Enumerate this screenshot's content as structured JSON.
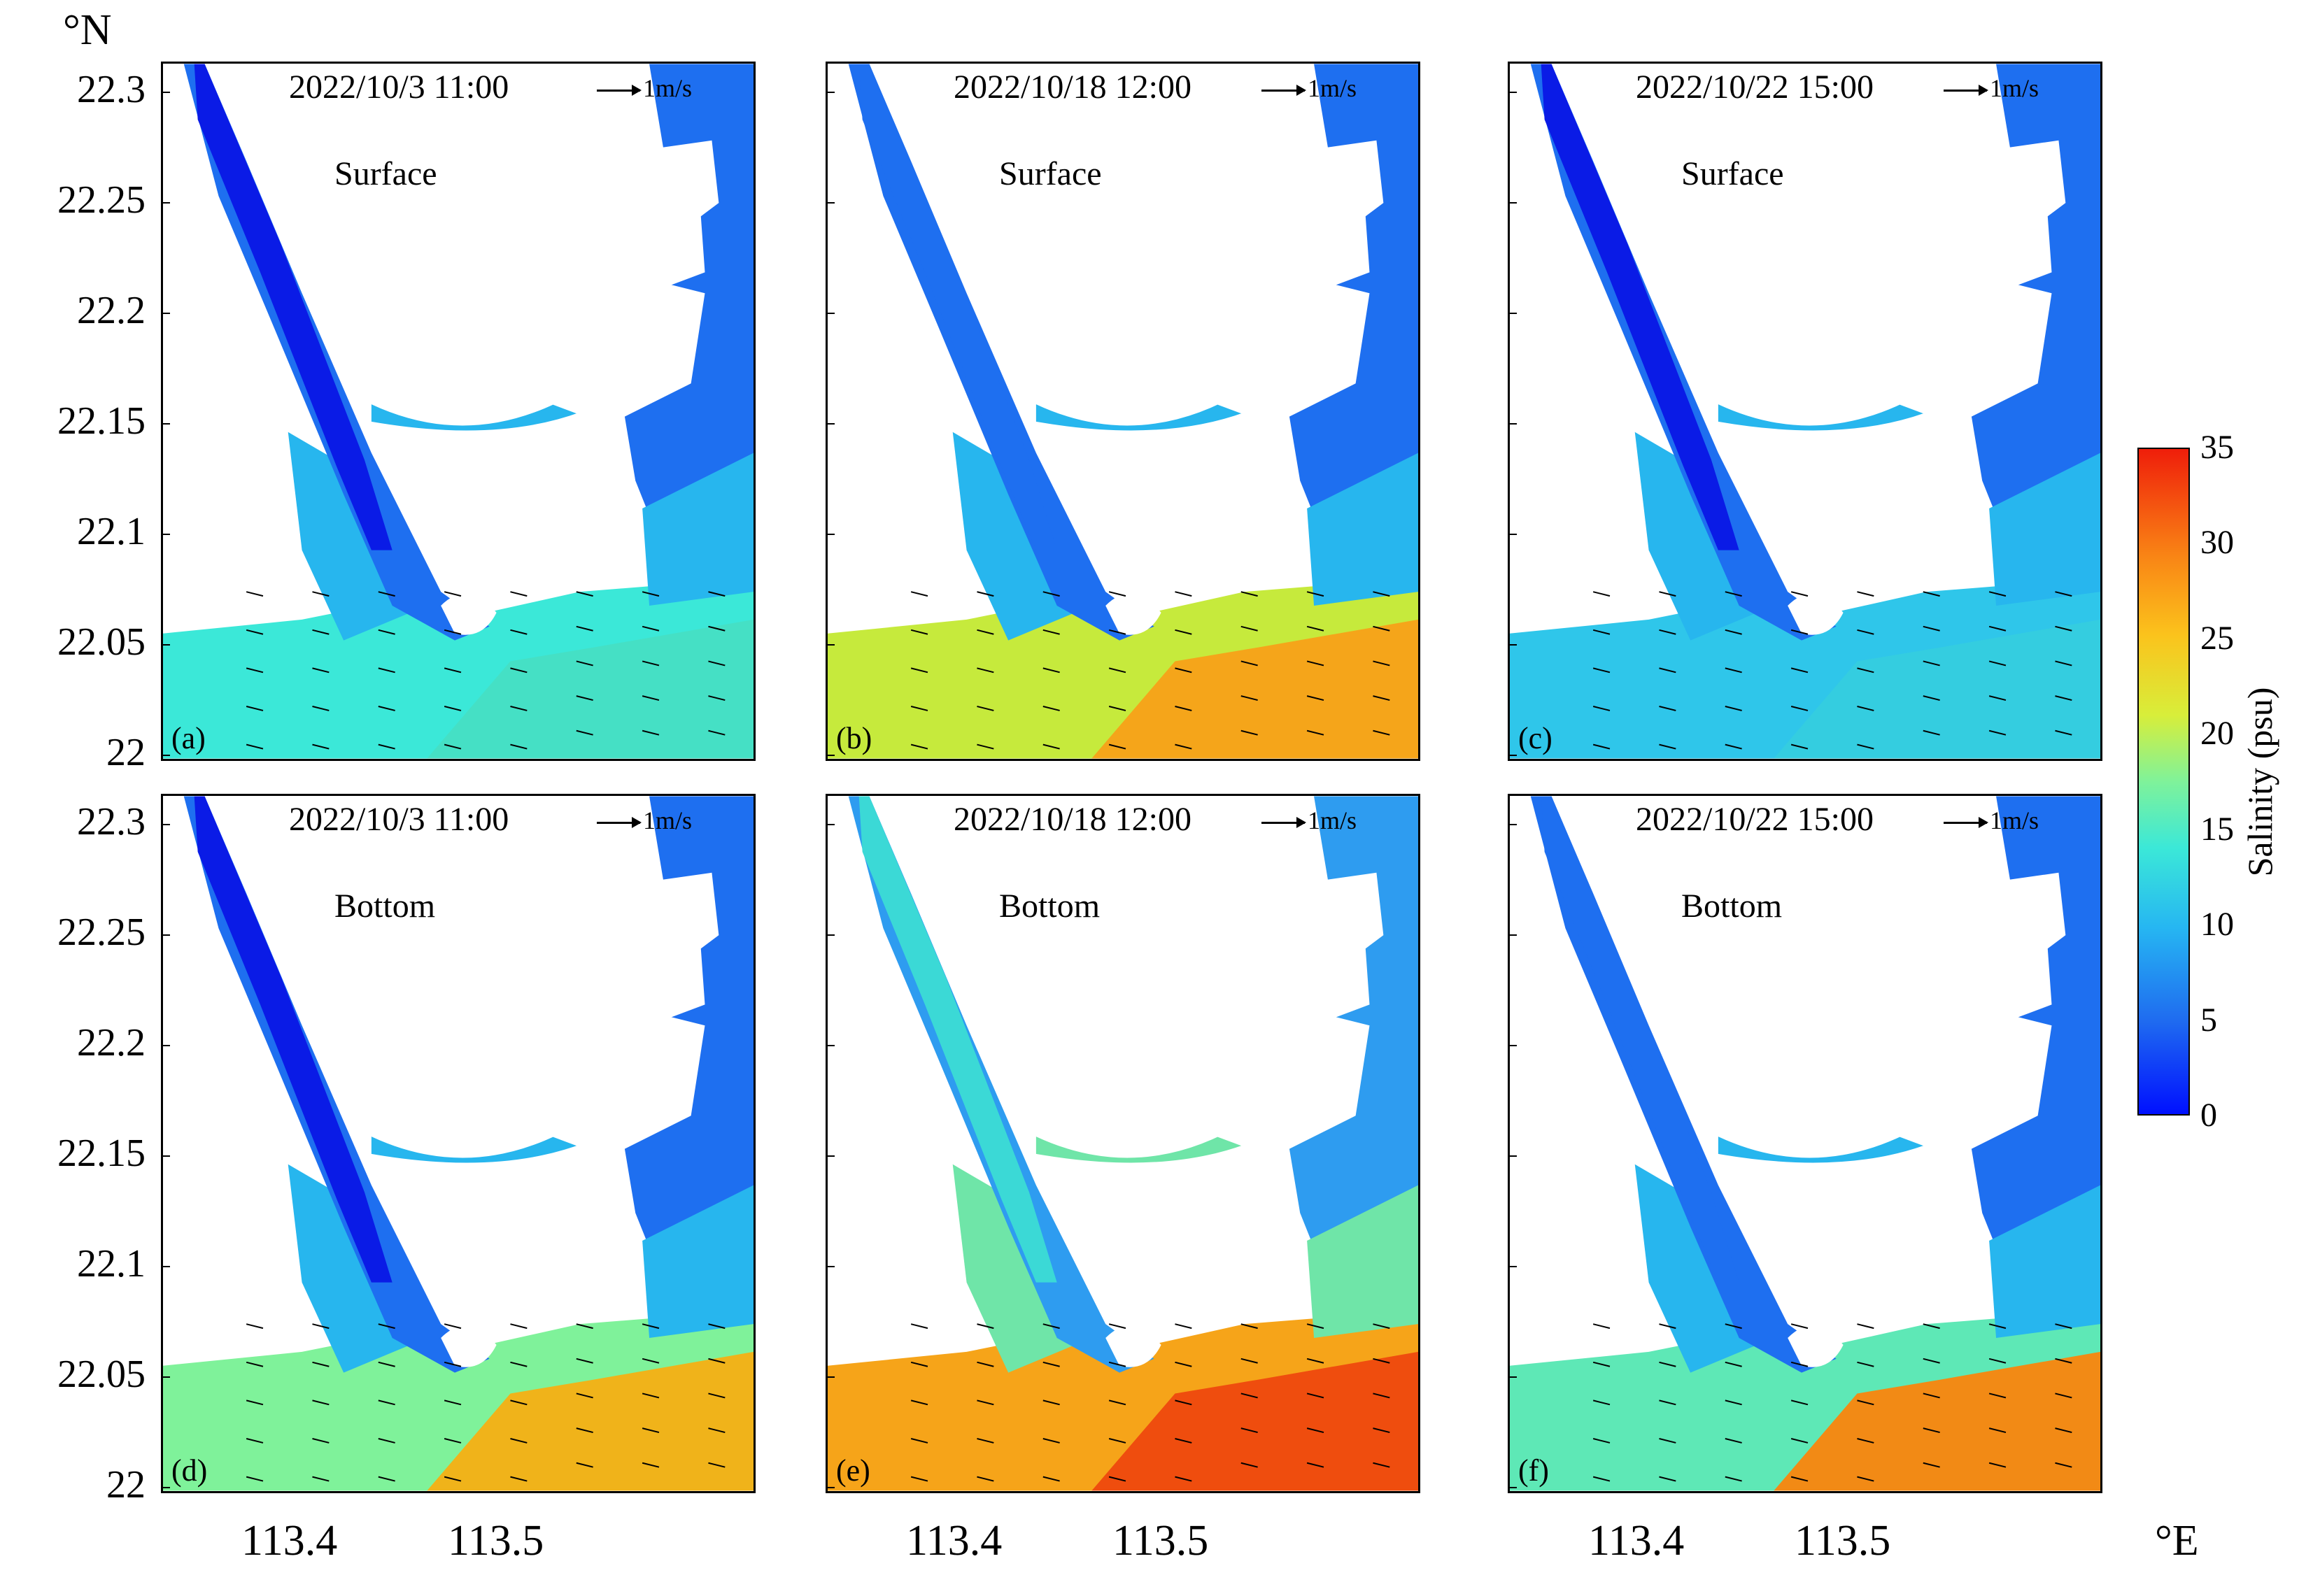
{
  "y_unit": "°N",
  "x_unit": "°E",
  "y_ticks": [
    "22.3",
    "22.25",
    "22.2",
    "22.15",
    "22.1",
    "22.05",
    "22"
  ],
  "x_ticks": [
    "113.4",
    "113.5"
  ],
  "vector_scale": "1m/s",
  "colorbar": {
    "label": "Salinity (psu)",
    "ticks": [
      "35",
      "30",
      "25",
      "20",
      "15",
      "10",
      "5",
      "0"
    ],
    "range": [
      0,
      35
    ],
    "colors": [
      "#0010ff",
      "#1f6bf0",
      "#26b6f2",
      "#3be8d8",
      "#7ff29a",
      "#d8ee3a",
      "#fbc31c",
      "#f98415",
      "#ef1e0a"
    ]
  },
  "panels": [
    {
      "label": "(a)",
      "datetime": "2022/10/3 11:00",
      "layer": "Surface"
    },
    {
      "label": "(b)",
      "datetime": "2022/10/18 12:00",
      "layer": "Surface"
    },
    {
      "label": "(c)",
      "datetime": "2022/10/22 15:00",
      "layer": "Surface"
    },
    {
      "label": "(d)",
      "datetime": "2022/10/3 11:00",
      "layer": "Bottom"
    },
    {
      "label": "(e)",
      "datetime": "2022/10/18 12:00",
      "layer": "Bottom"
    },
    {
      "label": "(f)",
      "datetime": "2022/10/22 15:00",
      "layer": "Bottom"
    }
  ]
}
